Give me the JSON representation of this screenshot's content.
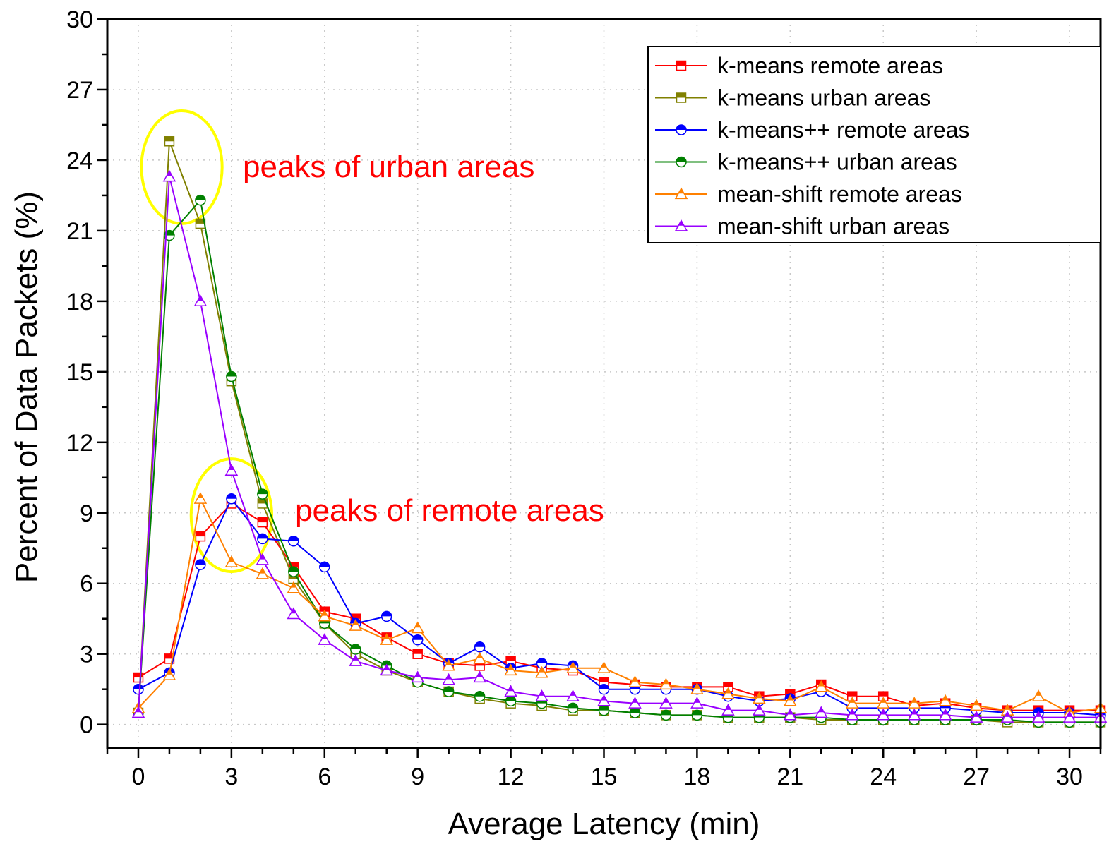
{
  "chart_data": {
    "type": "line",
    "title": "",
    "xlabel": "Average Latency (min)",
    "ylabel": "Percent of Data Packets (%)",
    "xlim": [
      -1,
      31
    ],
    "ylim": [
      -1,
      30
    ],
    "xticks": [
      0,
      3,
      6,
      9,
      12,
      15,
      18,
      21,
      24,
      27,
      30
    ],
    "yticks": [
      0,
      3,
      6,
      9,
      12,
      15,
      18,
      21,
      24,
      27,
      30
    ],
    "grid": "dotted",
    "legend_position": "top-right",
    "x": [
      0,
      1,
      2,
      3,
      4,
      5,
      6,
      7,
      8,
      9,
      10,
      11,
      12,
      13,
      14,
      15,
      16,
      17,
      18,
      19,
      20,
      21,
      22,
      23,
      24,
      25,
      26,
      27,
      28,
      29,
      30,
      31
    ],
    "series": [
      {
        "name": "k-means remote areas",
        "color": "#ff0000",
        "marker": "square",
        "values": [
          2.0,
          2.8,
          8.0,
          9.4,
          8.6,
          6.7,
          4.8,
          4.5,
          3.7,
          3.0,
          2.6,
          2.5,
          2.7,
          2.4,
          2.3,
          1.8,
          1.7,
          1.6,
          1.6,
          1.6,
          1.2,
          1.3,
          1.7,
          1.2,
          1.2,
          0.8,
          0.9,
          0.7,
          0.6,
          0.6,
          0.6,
          0.6
        ]
      },
      {
        "name": "k-means urban areas",
        "color": "#808000",
        "marker": "square",
        "values": [
          0.5,
          24.8,
          21.3,
          14.6,
          9.4,
          6.2,
          4.3,
          3.0,
          2.3,
          1.8,
          1.4,
          1.1,
          0.9,
          0.8,
          0.6,
          0.6,
          0.5,
          0.4,
          0.4,
          0.3,
          0.3,
          0.3,
          0.2,
          0.2,
          0.2,
          0.2,
          0.2,
          0.2,
          0.1,
          0.1,
          0.1,
          0.1
        ]
      },
      {
        "name": "k-means++ remote areas",
        "color": "#0000ff",
        "marker": "circle",
        "values": [
          1.5,
          2.2,
          6.8,
          9.6,
          7.9,
          7.8,
          6.7,
          4.3,
          4.6,
          3.6,
          2.6,
          3.3,
          2.4,
          2.6,
          2.5,
          1.5,
          1.5,
          1.5,
          1.5,
          1.2,
          1.0,
          1.1,
          1.4,
          0.7,
          0.7,
          0.7,
          0.7,
          0.6,
          0.5,
          0.5,
          0.5,
          0.4
        ]
      },
      {
        "name": "k-means++ urban areas",
        "color": "#008000",
        "marker": "circle",
        "values": [
          0.5,
          20.8,
          22.3,
          14.8,
          9.8,
          6.5,
          4.3,
          3.2,
          2.5,
          1.8,
          1.4,
          1.2,
          1.0,
          0.9,
          0.7,
          0.6,
          0.5,
          0.4,
          0.4,
          0.3,
          0.3,
          0.3,
          0.3,
          0.2,
          0.2,
          0.2,
          0.2,
          0.2,
          0.2,
          0.1,
          0.1,
          0.1
        ]
      },
      {
        "name": "mean-shift remote areas",
        "color": "#ff8000",
        "marker": "triangle",
        "values": [
          0.7,
          2.1,
          9.6,
          6.9,
          6.4,
          5.8,
          4.6,
          4.2,
          3.6,
          4.1,
          2.5,
          2.8,
          2.3,
          2.2,
          2.4,
          2.4,
          1.8,
          1.7,
          1.5,
          1.3,
          1.1,
          1.0,
          1.6,
          0.9,
          0.9,
          0.9,
          1.0,
          0.8,
          0.6,
          1.2,
          0.5,
          0.7
        ]
      },
      {
        "name": "mean-shift urban areas",
        "color": "#9900ff",
        "marker": "triangle",
        "values": [
          0.5,
          23.3,
          18.0,
          10.8,
          7.0,
          4.7,
          3.6,
          2.7,
          2.3,
          2.0,
          1.9,
          2.0,
          1.4,
          1.2,
          1.2,
          1.0,
          0.9,
          0.9,
          0.9,
          0.6,
          0.6,
          0.4,
          0.5,
          0.4,
          0.4,
          0.4,
          0.4,
          0.3,
          0.3,
          0.3,
          0.3,
          0.3
        ]
      }
    ],
    "annotations": [
      {
        "text": "peaks of urban areas",
        "color": "#ff0000",
        "circle_center": [
          1.4,
          23.7
        ],
        "circle_radius_x": 1.3,
        "circle_radius_y": 2.4,
        "circle_color": "#ffff00"
      },
      {
        "text": "peaks of remote areas",
        "color": "#ff0000",
        "circle_center": [
          3.0,
          8.9
        ],
        "circle_radius_x": 1.3,
        "circle_radius_y": 2.4,
        "circle_color": "#ffff00"
      }
    ]
  }
}
